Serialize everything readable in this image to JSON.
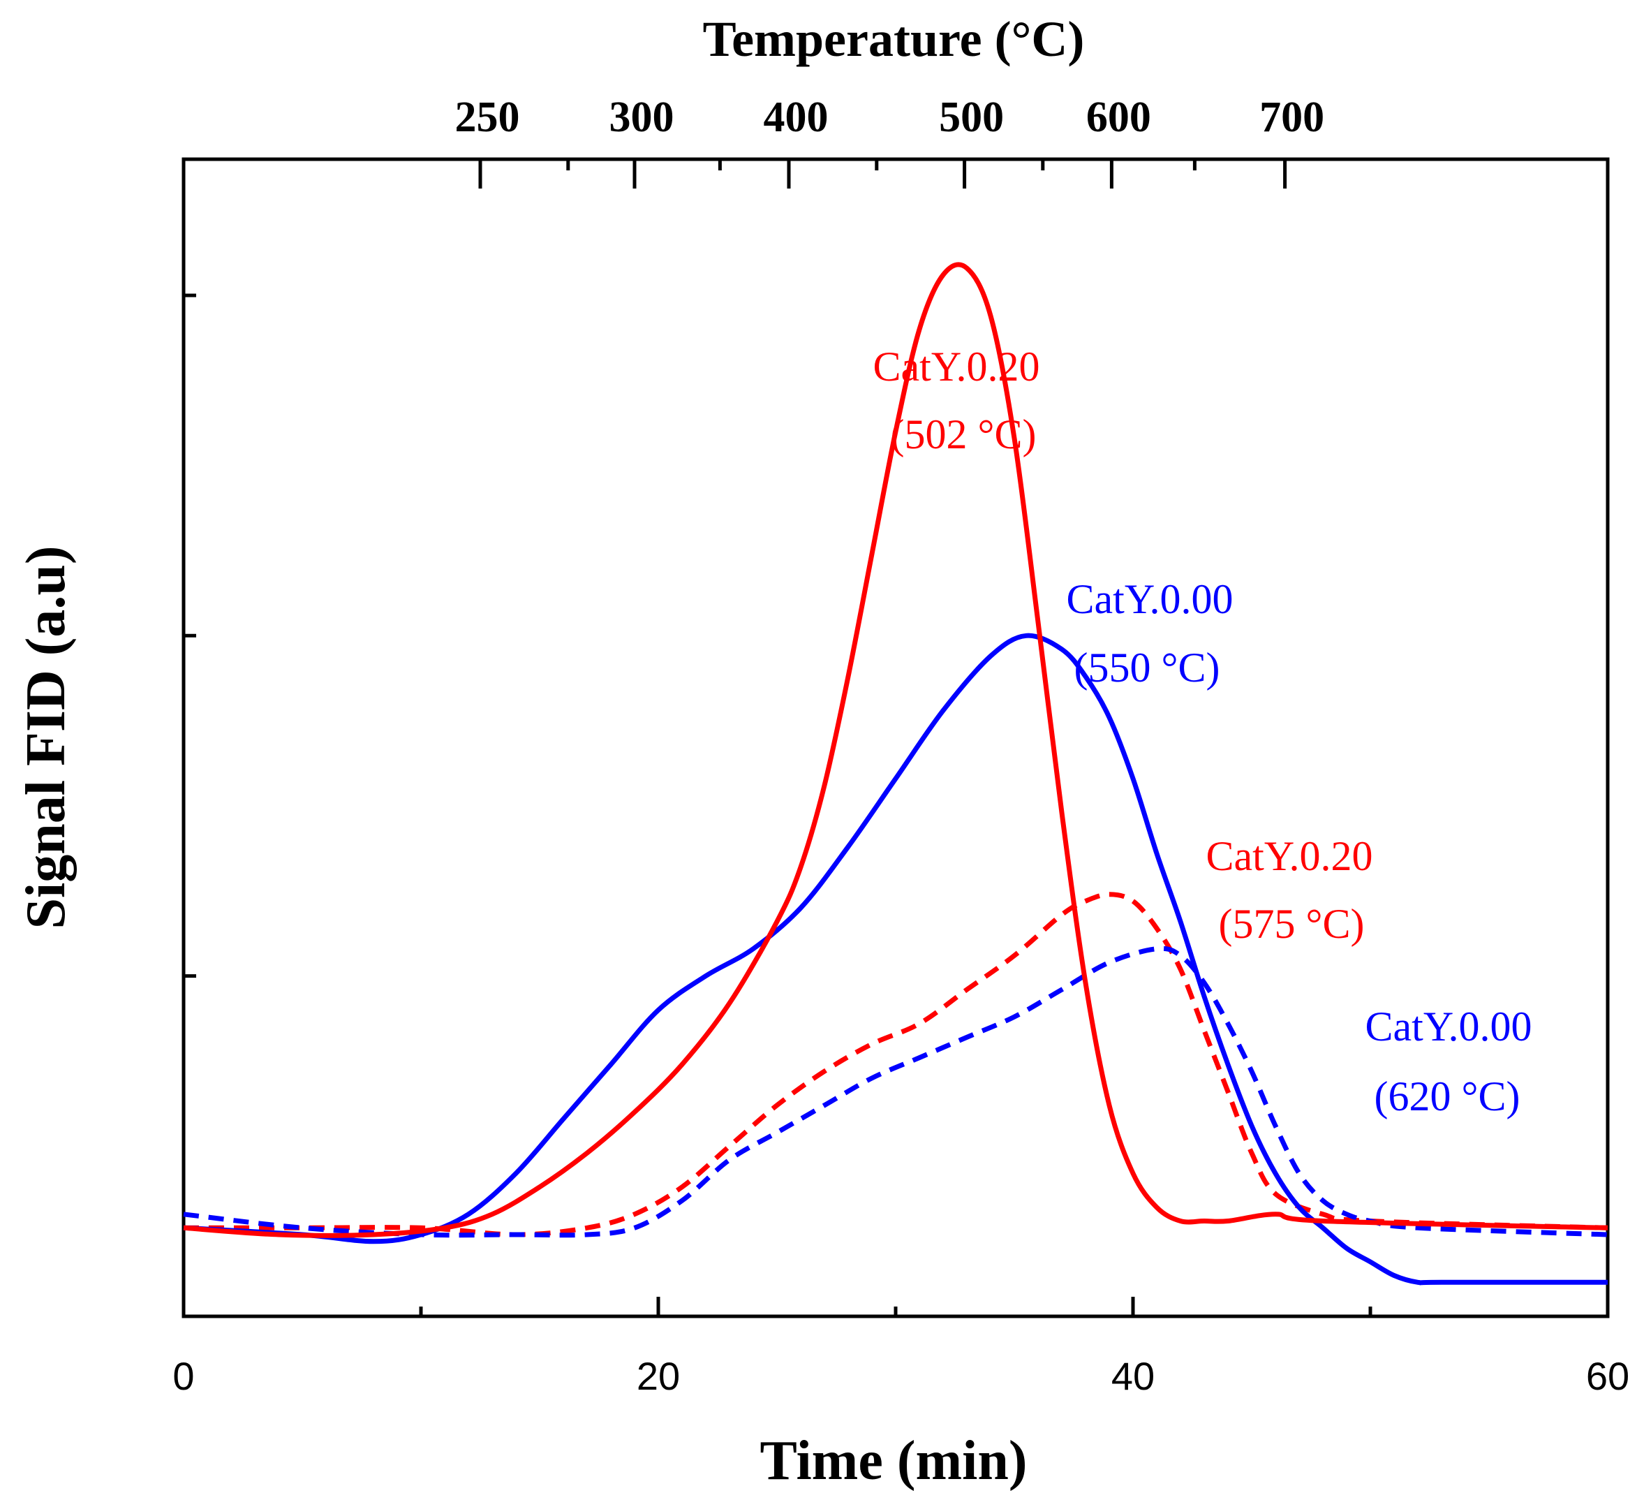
{
  "chart_data": {
    "type": "line",
    "xlabel": "Time (min)",
    "ylabel": "Signal FID (a.u)",
    "top_axis_label": "Temperature (°C)",
    "xlim": [
      0,
      60
    ],
    "x_ticks": [
      0,
      20,
      40,
      60
    ],
    "x_minor_ticks": [
      10,
      30,
      50
    ],
    "ylim": [
      0,
      1.7
    ],
    "y_ticks": [
      0.5,
      1.0,
      1.5
    ],
    "top_axis_ticks": [
      {
        "label": "250",
        "time": 12.5
      },
      {
        "label": "300",
        "time": 19.0
      },
      {
        "label": "400",
        "time": 25.5
      },
      {
        "label": "500",
        "time": 32.9
      },
      {
        "label": "600",
        "time": 39.1
      },
      {
        "label": "700",
        "time": 46.4
      }
    ],
    "top_axis_minor_ticks": [
      16.2,
      22.6,
      29.2,
      36.2,
      42.6
    ],
    "grid": false,
    "colors": {
      "red": "#ff0000",
      "blue": "#0000ff"
    },
    "series": [
      {
        "name": "CatY.0.20",
        "color": "#ff0000",
        "dash": "solid",
        "x": [
          0,
          4,
          8,
          11,
          13,
          15,
          17,
          19,
          21,
          23,
          25,
          26,
          27,
          28,
          29,
          30,
          31,
          32,
          33,
          34,
          35,
          36,
          37,
          38,
          39,
          40,
          41,
          42,
          43,
          44,
          46,
          48,
          60
        ],
        "y": [
          0.13,
          0.12,
          0.12,
          0.13,
          0.15,
          0.19,
          0.24,
          0.3,
          0.37,
          0.46,
          0.58,
          0.66,
          0.78,
          0.94,
          1.12,
          1.3,
          1.45,
          1.53,
          1.54,
          1.47,
          1.29,
          1.02,
          0.74,
          0.49,
          0.31,
          0.21,
          0.16,
          0.14,
          0.14,
          0.14,
          0.15,
          0.14,
          0.13
        ]
      },
      {
        "name": "CatY.0.00",
        "color": "#0000ff",
        "dash": "solid",
        "x": [
          0,
          5,
          8,
          10,
          12,
          14,
          16,
          18,
          20,
          22,
          24,
          26,
          28,
          30,
          32,
          34,
          35.5,
          37,
          38,
          39,
          40,
          41,
          42,
          43,
          44,
          45,
          46,
          47,
          48,
          49,
          50,
          51,
          52,
          53,
          60
        ],
        "y": [
          0.13,
          0.12,
          0.11,
          0.12,
          0.15,
          0.21,
          0.29,
          0.37,
          0.45,
          0.5,
          0.54,
          0.6,
          0.69,
          0.79,
          0.89,
          0.97,
          1.0,
          0.98,
          0.94,
          0.88,
          0.79,
          0.68,
          0.58,
          0.47,
          0.37,
          0.28,
          0.21,
          0.16,
          0.13,
          0.1,
          0.08,
          0.06,
          0.05,
          0.05,
          0.05
        ]
      },
      {
        "name": "CatY.0.20",
        "color": "#ff0000",
        "dash": "dashed",
        "x": [
          0,
          5,
          10,
          14,
          17,
          19,
          21,
          23,
          25,
          27,
          29,
          31,
          33,
          35,
          37,
          38,
          39,
          40,
          41,
          42,
          43,
          44,
          45,
          46,
          48,
          50,
          60
        ],
        "y": [
          0.13,
          0.13,
          0.13,
          0.12,
          0.13,
          0.15,
          0.19,
          0.25,
          0.31,
          0.36,
          0.4,
          0.43,
          0.48,
          0.53,
          0.59,
          0.61,
          0.62,
          0.61,
          0.57,
          0.51,
          0.42,
          0.33,
          0.24,
          0.18,
          0.15,
          0.14,
          0.13
        ]
      },
      {
        "name": "CatY.0.00",
        "color": "#0000ff",
        "dash": "dashed",
        "x": [
          0,
          5,
          10,
          14,
          17,
          19,
          21,
          23,
          25,
          27,
          29,
          31,
          33,
          35,
          37,
          39,
          41,
          42,
          43,
          44,
          45,
          46,
          47,
          48,
          49,
          50,
          52,
          60
        ],
        "y": [
          0.15,
          0.13,
          0.12,
          0.12,
          0.12,
          0.13,
          0.17,
          0.23,
          0.27,
          0.31,
          0.35,
          0.38,
          0.41,
          0.44,
          0.48,
          0.52,
          0.54,
          0.53,
          0.49,
          0.43,
          0.36,
          0.28,
          0.21,
          0.17,
          0.15,
          0.14,
          0.13,
          0.12
        ]
      }
    ],
    "annotations": [
      {
        "line1": "CatY.0.20",
        "line2": "(502 °C)",
        "color": "#ff0000"
      },
      {
        "line1": "CatY.0.00",
        "line2": "(550 °C)",
        "color": "#0000ff"
      },
      {
        "line1": "CatY.0.20",
        "line2": "(575 °C)",
        "color": "#ff0000"
      },
      {
        "line1": "CatY.0.00",
        "line2": "(620 °C)",
        "color": "#0000ff"
      }
    ]
  }
}
